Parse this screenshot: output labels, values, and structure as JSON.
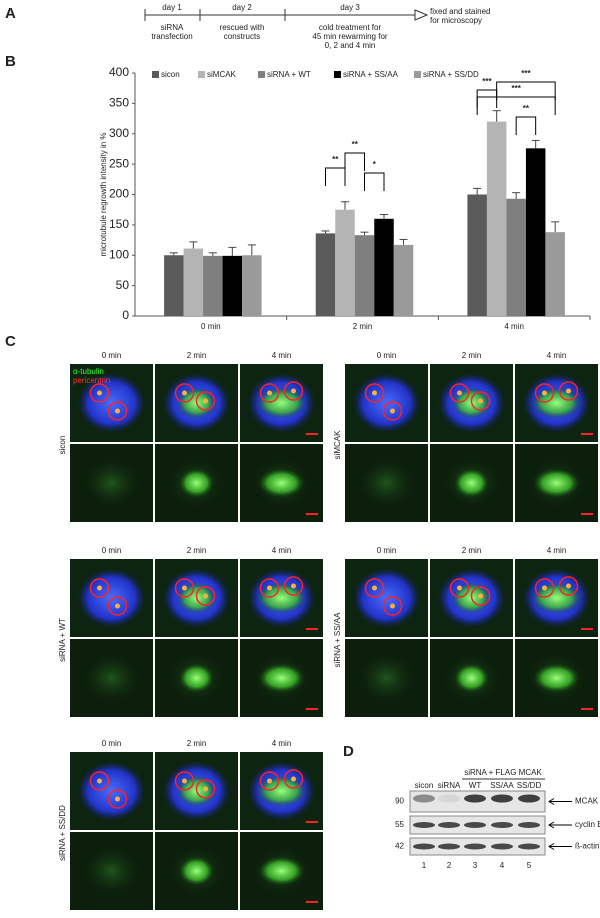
{
  "panels": [
    "A",
    "B",
    "C",
    "D"
  ],
  "timeline": {
    "steps": [
      {
        "day": "day 1",
        "text": [
          "siRNA",
          "transfection"
        ]
      },
      {
        "day": "day 2",
        "text": [
          "rescued with",
          "constructs"
        ]
      },
      {
        "day": "day 3",
        "text": [
          "cold treatment for",
          "45 min rewarming for",
          "0, 2 and 4 min"
        ]
      }
    ],
    "end": [
      "fixed and stained",
      "for microscopy"
    ]
  },
  "chart_data": {
    "type": "bar",
    "y_label": "microtubule regrowth intensity in %",
    "categories": [
      "0 min",
      "2 min",
      "4 min"
    ],
    "series": [
      {
        "name": "sicon",
        "color": "#5a5a5a",
        "values": [
          100,
          136,
          200
        ],
        "errors": [
          4,
          4,
          10
        ]
      },
      {
        "name": "siMCAK",
        "color": "#b4b4b4",
        "values": [
          111,
          175,
          320
        ],
        "errors": [
          11,
          13,
          18
        ]
      },
      {
        "name": "siRNA + WT",
        "color": "#7f7f7f",
        "values": [
          99,
          133,
          193
        ],
        "errors": [
          5,
          5,
          10
        ]
      },
      {
        "name": "siRNA + SS/AA",
        "color": "#000000",
        "values": [
          99,
          160,
          276
        ],
        "errors": [
          14,
          7,
          13
        ]
      },
      {
        "name": "siRNA + SS/DD",
        "color": "#9a9a9a",
        "values": [
          100,
          117,
          138
        ],
        "errors": [
          17,
          9,
          17
        ]
      }
    ],
    "ylim": [
      0,
      400
    ],
    "yticks": [
      0,
      50,
      100,
      150,
      200,
      250,
      300,
      350,
      400
    ],
    "legend": "top",
    "annotations": [
      "**",
      "**",
      "*",
      "***",
      "***",
      "***",
      "**"
    ]
  },
  "microscopy": {
    "timepoints": [
      "0 min",
      "2 min",
      "4 min"
    ],
    "stains": [
      "α-tubulin",
      "pericentrin"
    ],
    "conditions": [
      "sicon",
      "siMCAK",
      "siRNA + WT",
      "siRNA + SS/AA",
      "siRNA + SS/DD"
    ]
  },
  "blot": {
    "group": "siRNA + FLAG MCAK",
    "lanes": [
      "sicon",
      "siRNA",
      "WT",
      "SS/AA",
      "SS/DD"
    ],
    "lane_numbers": [
      1,
      2,
      3,
      4,
      5
    ],
    "markers": [
      90,
      55,
      42
    ],
    "bands": [
      "MCAK",
      "cyclin B1",
      "ß-actin"
    ]
  }
}
